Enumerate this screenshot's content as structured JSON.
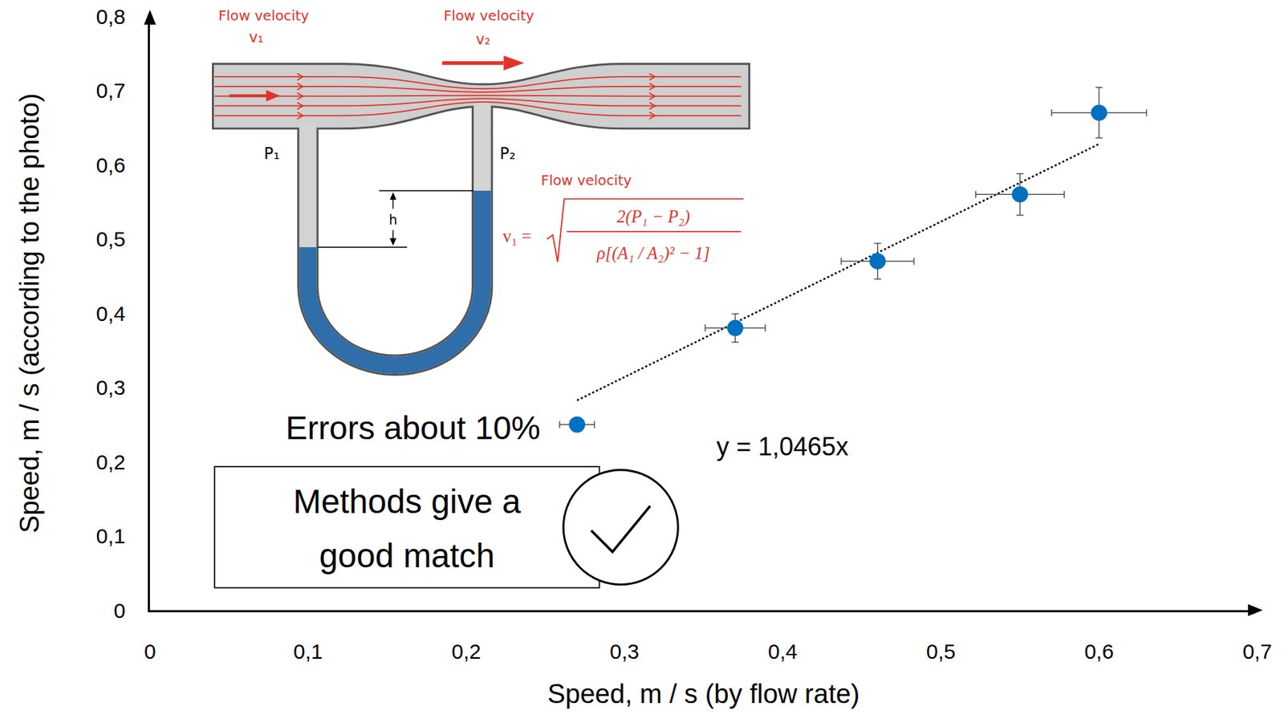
{
  "chart_data": {
    "type": "scatter",
    "x_label": "Speed, m / s (by flow rate)",
    "y_label": "Speed, m / s (according to the photo)",
    "x": [
      0.27,
      0.37,
      0.46,
      0.55,
      0.6
    ],
    "values": [
      0.25,
      0.38,
      0.47,
      0.56,
      0.67
    ],
    "x_error": [
      0.011,
      0.019,
      0.023,
      0.028,
      0.03
    ],
    "y_error": [
      0.005,
      0.019,
      0.024,
      0.028,
      0.034
    ],
    "color": "#0070c0",
    "marker": "circle",
    "xlim": [
      0,
      0.7
    ],
    "ylim": [
      0,
      0.8
    ],
    "xticks": [
      0,
      {
        "value": 0.1,
        "label": "0,1"
      },
      {
        "value": 0.2,
        "label": "0,2"
      },
      {
        "value": 0.3,
        "label": "0,3"
      },
      {
        "value": 0.4,
        "label": "0,4"
      },
      {
        "value": 0.5,
        "label": "0,5"
      },
      {
        "value": 0.6,
        "label": "0,6"
      },
      {
        "value": 0.7,
        "label": "0,7"
      }
    ],
    "yticks": [
      0,
      {
        "value": 0.1,
        "label": "0,1"
      },
      {
        "value": 0.2,
        "label": "0,2"
      },
      {
        "value": 0.3,
        "label": "0,3"
      },
      {
        "value": 0.4,
        "label": "0,4"
      },
      {
        "value": 0.5,
        "label": "0,5"
      },
      {
        "value": 0.6,
        "label": "0,6"
      },
      {
        "value": 0.7,
        "label": "0,7"
      },
      {
        "value": 0.8,
        "label": "0,8"
      }
    ],
    "grid": false,
    "trendline": {
      "slope": 1.0465,
      "x": [
        0.27,
        0.6
      ],
      "label": "y = 1,0465x",
      "line_style": "dotted"
    },
    "annotations": [
      {
        "text": "Errors about 10%"
      }
    ],
    "conclusion": [
      "Methods give a",
      "good match"
    ]
  },
  "diagram": {
    "top_labels": [
      {
        "title": "Flow velocity",
        "symbol": "v₁"
      },
      {
        "title": "Flow velocity",
        "symbol": "v₂"
      }
    ],
    "pressure_labels": [
      "P₁",
      "P₂"
    ],
    "height_label": "h",
    "formula": {
      "title": "Flow velocity",
      "lhs": "v₁ =",
      "numerator": "2(P₁ − P₂)",
      "denominator": "ρ[(A₁ / A₂)² − 1]"
    }
  }
}
